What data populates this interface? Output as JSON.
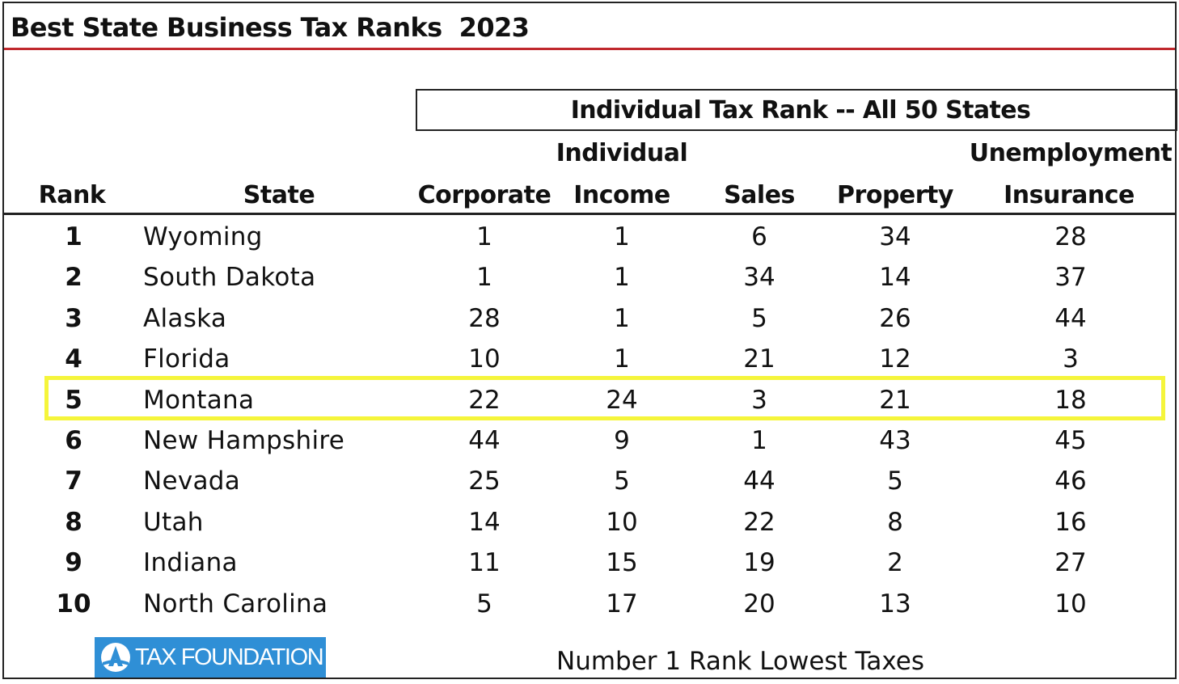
{
  "title": "Best State Business Tax Ranks  2023",
  "group_header": "Individual Tax Rank -- All 50 States",
  "columns": {
    "rank": "Rank",
    "state": "State",
    "corporate": "Corporate",
    "income_top": "Individual",
    "income_bottom": "Income",
    "sales": "Sales",
    "property": "Property",
    "ui_top": "Unemployment",
    "ui_bottom": "Insurance"
  },
  "highlight_color": "#f5f53b",
  "accent_color": "#c0282d",
  "logo": {
    "icon": "tax-foundation-logo-icon",
    "text": "TAX FOUNDATION",
    "color": "#2f8fd6"
  },
  "footnote": "Number 1 Rank Lowest Taxes",
  "chart_data": {
    "type": "table",
    "title": "Best State Business Tax Ranks  2023",
    "group_header": "Individual Tax Rank -- All 50 States",
    "columns": [
      "Rank",
      "State",
      "Corporate",
      "Individual Income",
      "Sales",
      "Property",
      "Unemployment Insurance"
    ],
    "highlighted_state": "Montana",
    "rows": [
      {
        "rank": "1",
        "state": "Wyoming",
        "corporate": "1",
        "income": "1",
        "sales": "6",
        "property": "34",
        "ui": "28"
      },
      {
        "rank": "2",
        "state": "South Dakota",
        "corporate": "1",
        "income": "1",
        "sales": "34",
        "property": "14",
        "ui": "37"
      },
      {
        "rank": "3",
        "state": "Alaska",
        "corporate": "28",
        "income": "1",
        "sales": "5",
        "property": "26",
        "ui": "44"
      },
      {
        "rank": "4",
        "state": "Florida",
        "corporate": "10",
        "income": "1",
        "sales": "21",
        "property": "12",
        "ui": "3"
      },
      {
        "rank": "5",
        "state": "Montana",
        "corporate": "22",
        "income": "24",
        "sales": "3",
        "property": "21",
        "ui": "18"
      },
      {
        "rank": "6",
        "state": "New Hampshire",
        "corporate": "44",
        "income": "9",
        "sales": "1",
        "property": "43",
        "ui": "45"
      },
      {
        "rank": "7",
        "state": "Nevada",
        "corporate": "25",
        "income": "5",
        "sales": "44",
        "property": "5",
        "ui": "46"
      },
      {
        "rank": "8",
        "state": "Utah",
        "corporate": "14",
        "income": "10",
        "sales": "22",
        "property": "8",
        "ui": "16"
      },
      {
        "rank": "9",
        "state": "Indiana",
        "corporate": "11",
        "income": "15",
        "sales": "19",
        "property": "2",
        "ui": "27"
      },
      {
        "rank": "10",
        "state": "North Carolina",
        "corporate": "5",
        "income": "17",
        "sales": "20",
        "property": "13",
        "ui": "10"
      }
    ]
  }
}
